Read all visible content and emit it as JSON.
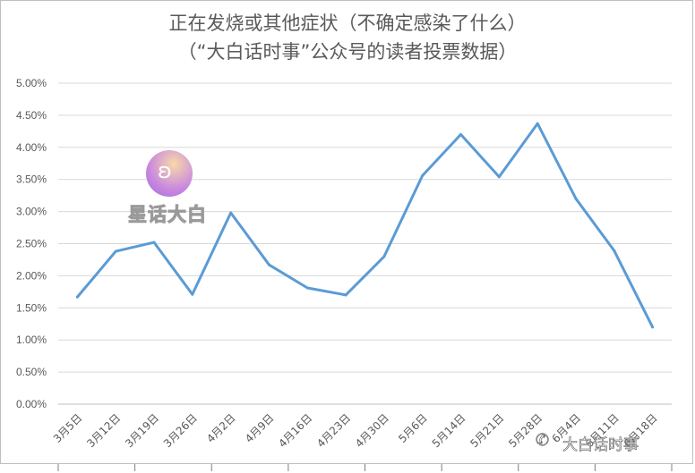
{
  "chart_data": {
    "type": "line",
    "title": "正在发烧或其他症状（不确定感染了什么）",
    "subtitle": "（“大白话时事”公众号的读者投票数据）",
    "categories": [
      "3月5日",
      "3月12日",
      "3月19日",
      "3月26日",
      "4月2日",
      "4月9日",
      "4月16日",
      "4月23日",
      "4月30日",
      "5月6日",
      "5月14日",
      "5月21日",
      "5月28日",
      "6月4日",
      "6月11日",
      "6月18日"
    ],
    "series": [
      {
        "values": [
          0.0167,
          0.0238,
          0.0252,
          0.0171,
          0.0298,
          0.0217,
          0.0181,
          0.017,
          0.023,
          0.0356,
          0.042,
          0.0354,
          0.0437,
          0.032,
          0.0239,
          0.012
        ]
      }
    ],
    "ylim": [
      0,
      0.05
    ],
    "yticks": [
      "0.00%",
      "0.50%",
      "1.00%",
      "1.50%",
      "2.00%",
      "2.50%",
      "3.00%",
      "3.50%",
      "4.00%",
      "4.50%",
      "5.00%"
    ],
    "grid": true,
    "line_color": "#5b9bd5"
  },
  "watermark": {
    "logo_text": "星话大白",
    "footer_text": "大白话时事",
    "logo_icon": "rabbit-icon",
    "footer_icon": "wechat-icon"
  }
}
